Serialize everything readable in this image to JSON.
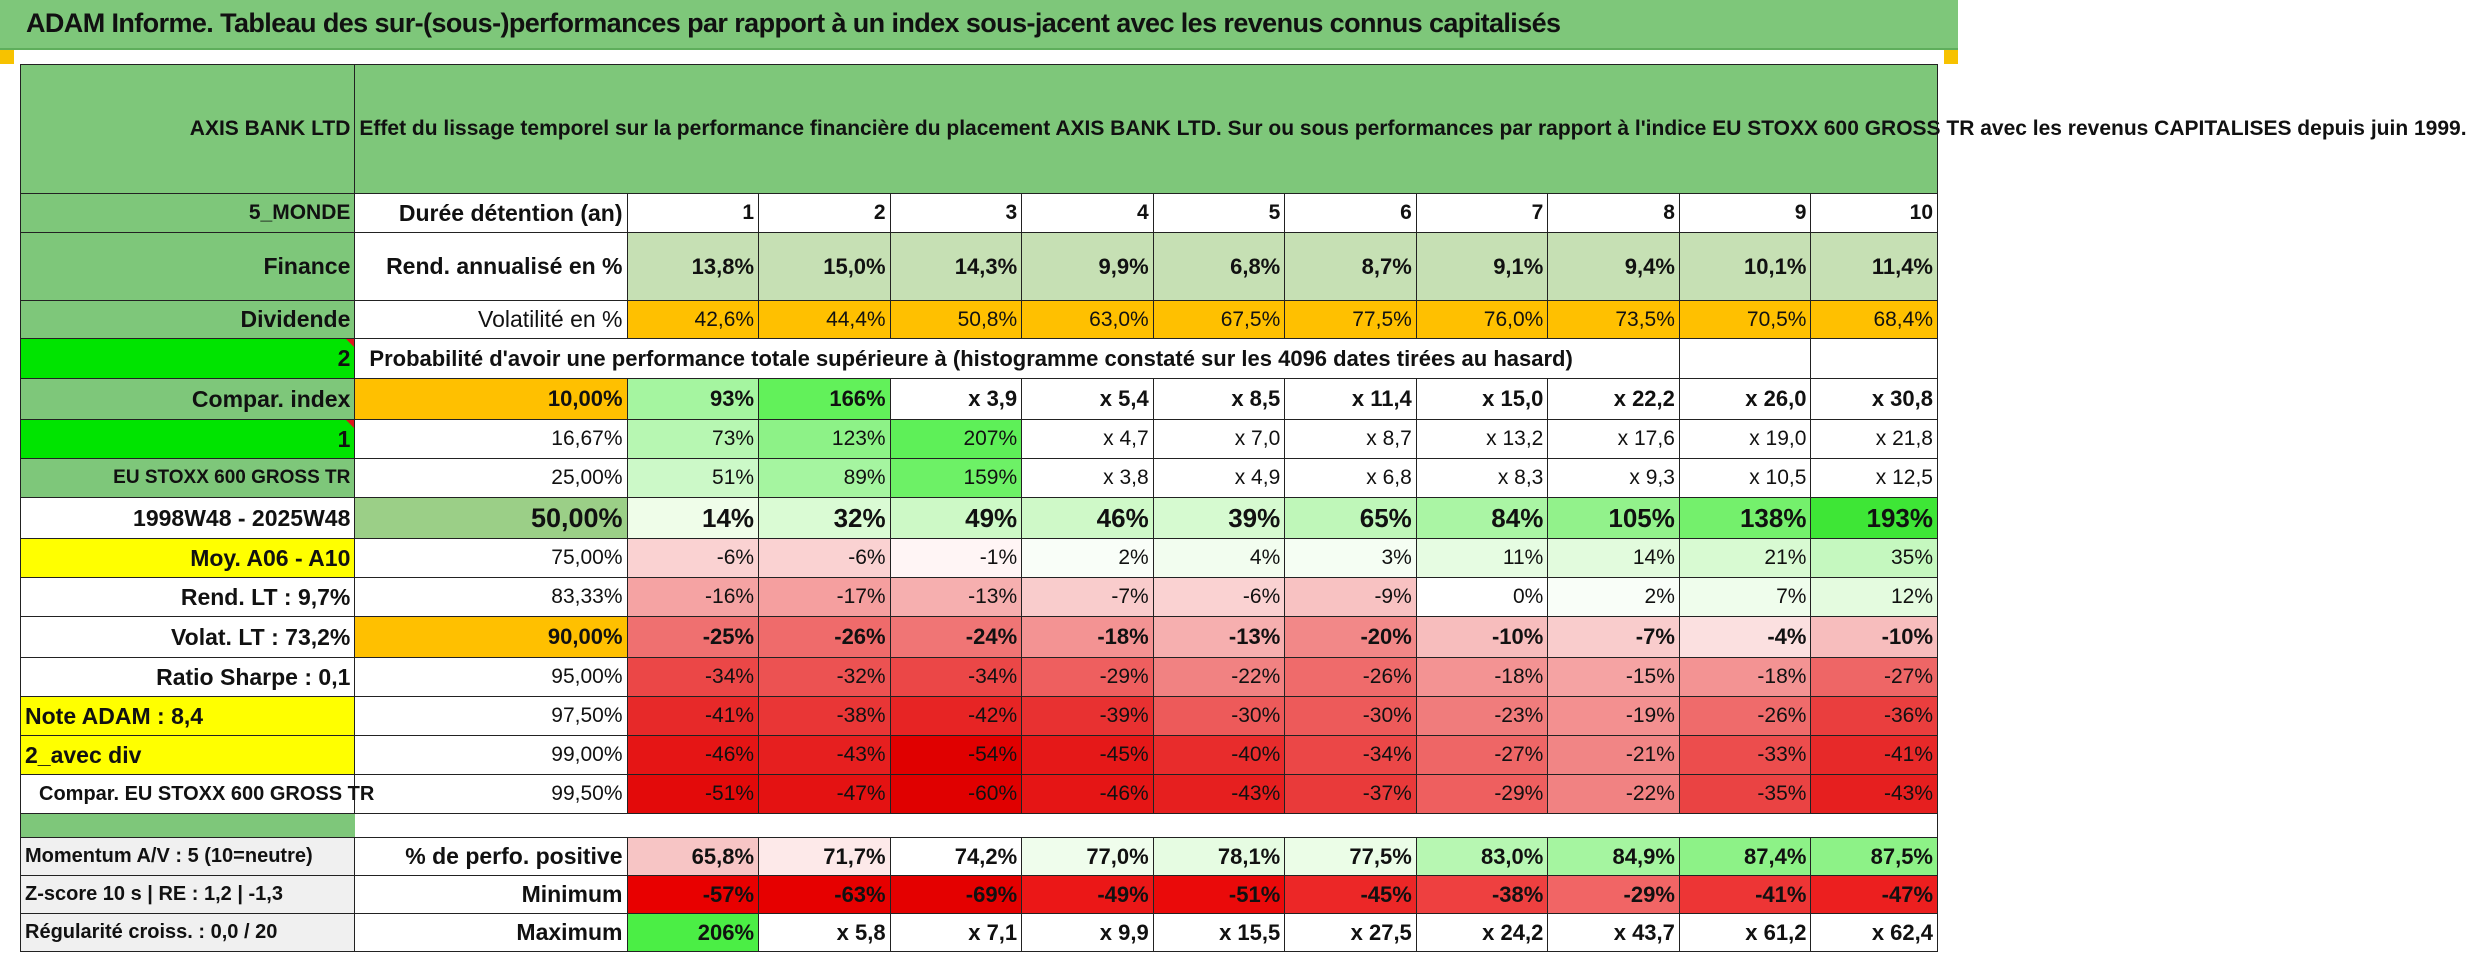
{
  "header": {
    "title": "ADAM Informe. Tableau des sur-(sous-)performances par rapport à un index sous-jacent avec les revenus connus capitalisés"
  },
  "asset": {
    "name": "AXIS BANK LTD",
    "description": "Effet du lissage temporel sur la performance financière du placement AXIS BANK LTD. Sur ou sous performances par rapport à l'indice EU STOXX 600 GROSS TR avec les revenus CAPITALISES depuis juin 1999."
  },
  "side": {
    "zone": "5_MONDE",
    "sector": "Finance",
    "type": "Dividende",
    "flag1": "2",
    "compar_label": "Compar. index",
    "flag2": "1",
    "index_name": "EU STOXX 600 GROSS TR",
    "period": "1998W48 - 2025W48",
    "moy": "Moy. A06 - A10",
    "rend_lt": "Rend. LT :    9,7%",
    "volat_lt": "Volat. LT :    73,2%",
    "sharpe": "Ratio Sharpe :     0,1",
    "note": "Note ADAM : 8,4",
    "div": "2_avec div",
    "compar_idx": "Compar. EU STOXX 600 GROSS TR"
  },
  "stats": {
    "duration_label": "Durée détention (an)",
    "years": [
      "1",
      "2",
      "3",
      "4",
      "5",
      "6",
      "7",
      "8",
      "9",
      "10"
    ],
    "rend_label": "Rend. annualisé en %",
    "rend": [
      "13,8%",
      "15,0%",
      "14,3%",
      "9,9%",
      "6,8%",
      "8,7%",
      "9,1%",
      "9,4%",
      "10,1%",
      "11,4%"
    ],
    "vol_label": "Volatilité en %",
    "vol": [
      "42,6%",
      "44,4%",
      "50,8%",
      "63,0%",
      "67,5%",
      "77,5%",
      "76,0%",
      "73,5%",
      "70,5%",
      "68,4%"
    ],
    "prob_label": "Probabilité d'avoir une performance totale supérieure à (histogramme constaté sur les 4096 dates tirées au hasard)"
  },
  "grid": [
    {
      "p": "10,00%",
      "v": [
        "93%",
        "166%",
        "x 3,9",
        "x 5,4",
        "x 8,5",
        "x 11,4",
        "x 15,0",
        "x 22,2",
        "x 26,0",
        "x 30,8"
      ],
      "c": [
        "#a5f5a0",
        "#62f15a",
        "#fff",
        "#fff",
        "#fff",
        "#fff",
        "#fff",
        "#fff",
        "#fff",
        "#fff"
      ]
    },
    {
      "p": "16,67%",
      "v": [
        "73%",
        "123%",
        "207%",
        "x 4,7",
        "x 7,0",
        "x 8,7",
        "x 13,2",
        "x 17,6",
        "x 19,0",
        "x 21,8"
      ],
      "c": [
        "#b7f7b2",
        "#8df287",
        "#5ef058",
        "#fff",
        "#fff",
        "#fff",
        "#fff",
        "#fff",
        "#fff",
        "#fff"
      ]
    },
    {
      "p": "25,00%",
      "v": [
        "51%",
        "89%",
        "159%",
        "x 3,8",
        "x 4,9",
        "x 6,8",
        "x 8,3",
        "x 9,3",
        "x 10,5",
        "x 12,5"
      ],
      "c": [
        "#ccf9c8",
        "#a5f5a0",
        "#6df166",
        "#fff",
        "#fff",
        "#fff",
        "#fff",
        "#fff",
        "#fff",
        "#fff"
      ]
    },
    {
      "p": "50,00%",
      "v": [
        "14%",
        "32%",
        "49%",
        "46%",
        "39%",
        "65%",
        "84%",
        "105%",
        "138%",
        "193%"
      ],
      "c": [
        "#effde9",
        "#dafbd4",
        "#cdf9c6",
        "#cff9c8",
        "#d6fad0",
        "#bff7b9",
        "#aaf5a4",
        "#92f28b",
        "#74f06c",
        "#3ee636"
      ]
    },
    {
      "p": "75,00%",
      "v": [
        "-6%",
        "-6%",
        "-1%",
        "2%",
        "4%",
        "3%",
        "11%",
        "14%",
        "21%",
        "35%"
      ],
      "c": [
        "#fad2d2",
        "#fad2d2",
        "#fff5f5",
        "#f9fef8",
        "#f2fdef",
        "#f5fef3",
        "#e6fce2",
        "#e2fbdd",
        "#d8fad2",
        "#c5f8bf"
      ]
    },
    {
      "p": "83,33%",
      "v": [
        "-16%",
        "-17%",
        "-13%",
        "-7%",
        "-6%",
        "-9%",
        "0%",
        "2%",
        "7%",
        "12%"
      ],
      "c": [
        "#f5a3a3",
        "#f59f9f",
        "#f6afaf",
        "#f9cccc",
        "#fad2d2",
        "#f8c2c2",
        "#fff",
        "#f9fef8",
        "#effdec",
        "#e4fbdf"
      ]
    },
    {
      "p": "90,00%",
      "v": [
        "-25%",
        "-26%",
        "-24%",
        "-18%",
        "-13%",
        "-20%",
        "-10%",
        "-7%",
        "-4%",
        "-10%"
      ],
      "c": [
        "#ef7070",
        "#ef6b6b",
        "#f07575",
        "#f39393",
        "#f6afaf",
        "#f28888",
        "#f7bdbd",
        "#f9cccc",
        "#fbe0e0",
        "#f7bdbd"
      ]
    },
    {
      "p": "95,00%",
      "v": [
        "-34%",
        "-32%",
        "-34%",
        "-29%",
        "-22%",
        "-26%",
        "-18%",
        "-15%",
        "-18%",
        "-27%"
      ],
      "c": [
        "#eb4747",
        "#ec5252",
        "#eb4747",
        "#ee5f5f",
        "#f18282",
        "#ef6b6b",
        "#f39393",
        "#f5a3a3",
        "#f39393",
        "#ee6666"
      ]
    },
    {
      "p": "97,50%",
      "v": [
        "-41%",
        "-38%",
        "-42%",
        "-39%",
        "-30%",
        "-30%",
        "-23%",
        "-19%",
        "-26%",
        "-36%"
      ],
      "c": [
        "#e72929",
        "#e93636",
        "#e72424",
        "#e83131",
        "#ed5a5a",
        "#ed5a5a",
        "#f07c7c",
        "#f39090",
        "#ef6b6b",
        "#ea3e3e"
      ]
    },
    {
      "p": "99,00%",
      "v": [
        "-46%",
        "-43%",
        "-54%",
        "-45%",
        "-40%",
        "-34%",
        "-27%",
        "-21%",
        "-33%",
        "-41%"
      ],
      "c": [
        "#e51515",
        "#e61f1f",
        "#e00000",
        "#e51818",
        "#e82c2c",
        "#eb4747",
        "#ee6666",
        "#f18585",
        "#ec4d4d",
        "#e72929"
      ]
    },
    {
      "p": "99,50%",
      "v": [
        "-51%",
        "-47%",
        "-60%",
        "-46%",
        "-43%",
        "-37%",
        "-29%",
        "-22%",
        "-35%",
        "-43%"
      ],
      "c": [
        "#e30a0a",
        "#e41212",
        "#e00000",
        "#e51515",
        "#e61f1f",
        "#e93a3a",
        "#ee5f5f",
        "#f18282",
        "#ea4343",
        "#e61f1f"
      ]
    }
  ],
  "footer": [
    {
      "l": "Momentum A/V : 5 (10=neutre)",
      "m": "% de perfo. positive",
      "v": [
        "65,8%",
        "71,7%",
        "74,2%",
        "77,0%",
        "78,1%",
        "77,5%",
        "83,0%",
        "84,9%",
        "87,4%",
        "87,5%"
      ],
      "c": [
        "#f7c5c5",
        "#fde9e9",
        "#fff",
        "#effdec",
        "#e6fce2",
        "#ebfde7",
        "#b7f7b2",
        "#a5f5a0",
        "#8df287",
        "#8df287"
      ]
    },
    {
      "l": "Z-score 10 s | RE : 1,2 | -1,3",
      "m": "Minimum",
      "v": [
        "-57%",
        "-63%",
        "-69%",
        "-49%",
        "-51%",
        "-45%",
        "-38%",
        "-29%",
        "-41%",
        "-47%"
      ],
      "c": [
        "#e80000",
        "#e60000",
        "#e40000",
        "#eb1717",
        "#ea0a0a",
        "#ec2727",
        "#ee4040",
        "#f16565",
        "#ed3535",
        "#ec1f1f"
      ]
    },
    {
      "l": "Régularité croiss. : 0,0 / 20",
      "m": "Maximum",
      "v": [
        "206%",
        "x 5,8",
        "x 7,1",
        "x 9,9",
        "x 15,5",
        "x 27,5",
        "x 24,2",
        "x 43,7",
        "x 61,2",
        "x 62,4"
      ],
      "c": [
        "#4bee45",
        "#fff",
        "#fff",
        "#fff",
        "#fff",
        "#fff",
        "#fff",
        "#fff",
        "#fff",
        "#fff"
      ]
    }
  ],
  "colors": {
    "header_green": "#7ec77a",
    "orange": "#ffc000",
    "yellow": "#ffff00",
    "bright_green": "#00e400",
    "red_text": "#e0141e"
  }
}
